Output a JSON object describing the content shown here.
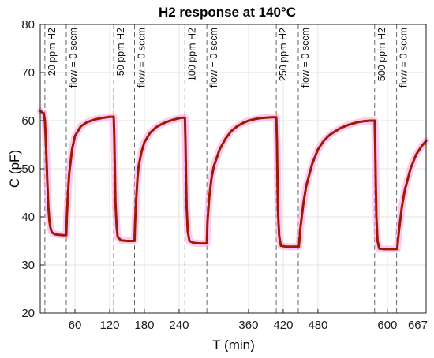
{
  "chart_data": {
    "type": "line",
    "title": "H2 response at 140°C",
    "xlabel": "T (min)",
    "ylabel": "C (pF)",
    "xlim": [
      0,
      667
    ],
    "ylim": [
      20,
      80
    ],
    "xticks": [
      60,
      120,
      180,
      240,
      360,
      420,
      480,
      600,
      667
    ],
    "yticks": [
      20,
      30,
      40,
      50,
      60,
      70,
      80
    ],
    "grid": true,
    "event_lines": [
      {
        "x": 8,
        "label": "20 ppm H2"
      },
      {
        "x": 45,
        "label": "flow = 0 sccm"
      },
      {
        "x": 127,
        "label": "50 ppm H2"
      },
      {
        "x": 163,
        "label": "flow = 0 sccm"
      },
      {
        "x": 250,
        "label": "100 ppm H2"
      },
      {
        "x": 288,
        "label": "flow = 0 sccm"
      },
      {
        "x": 408,
        "label": "250 ppm H2"
      },
      {
        "x": 446,
        "label": "flow = 0 sccm"
      },
      {
        "x": 578,
        "label": "500 ppm H2"
      },
      {
        "x": 616,
        "label": "flow = 0 sccm"
      }
    ],
    "series": [
      {
        "color": "#9c1a00",
        "x": [
          0,
          6,
          8,
          10,
          12,
          14,
          16,
          18,
          20,
          25,
          30,
          40,
          44,
          45,
          46,
          48,
          50,
          55,
          60,
          70,
          80,
          90,
          100,
          110,
          120,
          123,
          127,
          128,
          129,
          130,
          132,
          134,
          140,
          150,
          160,
          162,
          163,
          164,
          166,
          168,
          170,
          175,
          180,
          190,
          200,
          210,
          220,
          230,
          240,
          246,
          250,
          251,
          252,
          253,
          255,
          258,
          265,
          275,
          285,
          287,
          288,
          289,
          292,
          296,
          300,
          310,
          320,
          330,
          340,
          350,
          360,
          370,
          380,
          390,
          400,
          405,
          408,
          409,
          410,
          411,
          413,
          416,
          425,
          435,
          444,
          446,
          447,
          450,
          455,
          460,
          470,
          480,
          490,
          500,
          510,
          520,
          530,
          540,
          550,
          560,
          570,
          575,
          578,
          579,
          580,
          581,
          583,
          586,
          595,
          605,
          614,
          616,
          617,
          620,
          625,
          630,
          640,
          650,
          660,
          667
        ],
        "y": [
          62,
          61.5,
          60,
          55,
          48,
          42,
          39,
          37.5,
          36.8,
          36.4,
          36.3,
          36.2,
          36.2,
          36.2,
          40,
          45,
          49,
          54,
          56.8,
          58.8,
          59.6,
          60.1,
          60.4,
          60.6,
          60.8,
          60.8,
          60.8,
          57,
          50,
          43,
          38,
          35.8,
          35.1,
          35,
          35,
          35,
          35,
          39,
          44,
          48,
          50.5,
          53.5,
          55.5,
          57.5,
          58.6,
          59.3,
          59.8,
          60.2,
          60.5,
          60.6,
          60.6,
          56,
          49,
          42,
          37,
          35,
          34.6,
          34.5,
          34.5,
          34.5,
          34.5,
          39,
          44,
          48,
          50.5,
          54,
          56.2,
          57.8,
          58.8,
          59.5,
          60,
          60.3,
          60.5,
          60.6,
          60.7,
          60.7,
          60.7,
          56,
          48,
          41,
          36,
          34,
          33.8,
          33.8,
          33.8,
          33.8,
          33.8,
          38,
          43,
          46.5,
          51,
          54,
          55.8,
          57,
          57.8,
          58.5,
          59,
          59.4,
          59.7,
          59.9,
          60,
          60,
          60,
          55,
          47,
          40,
          35,
          33.4,
          33.3,
          33.3,
          33.3,
          33.3,
          33.3,
          37,
          42,
          45.5,
          50,
          53,
          54.8,
          55.8
        ]
      }
    ]
  }
}
